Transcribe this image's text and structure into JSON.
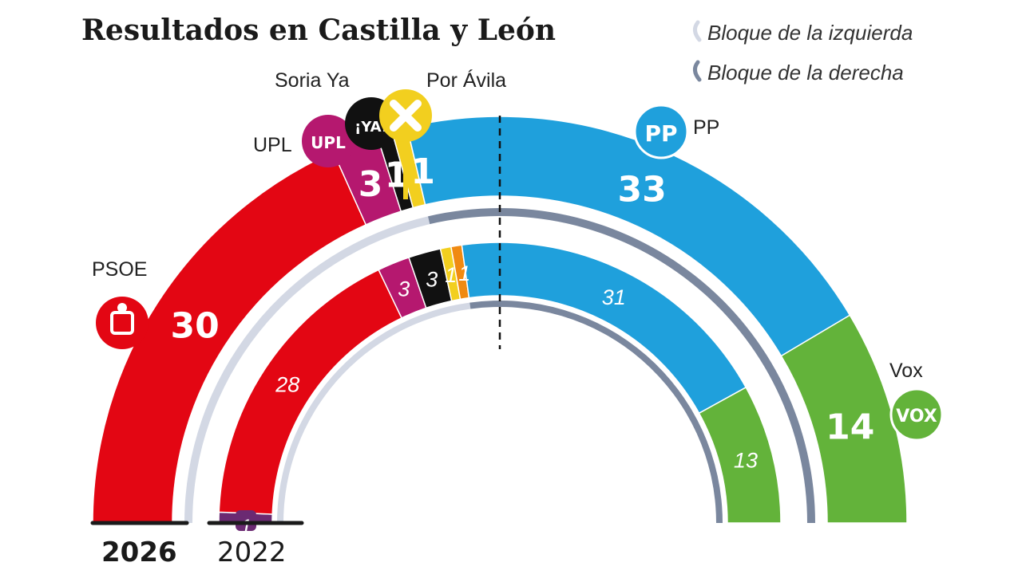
{
  "chart_data": {
    "type": "hemicycle",
    "title": "Resultados en Castilla y León",
    "legend": [
      {
        "label": "Bloque de la izquierda",
        "color": "#d3d8e4"
      },
      {
        "label": "Bloque de la derecha",
        "color": "#7a879e"
      }
    ],
    "majority_line": true,
    "years": [
      {
        "label": "2026",
        "series": [
          {
            "name": "PSOE",
            "value": 30,
            "color": "#e30613",
            "bloc": "izquierda"
          },
          {
            "name": "UPL",
            "value": 3,
            "color": "#b5186f",
            "bloc": "izquierda"
          },
          {
            "name": "Soria Ya",
            "value": 1,
            "color": "#111111",
            "bloc": "izquierda"
          },
          {
            "name": "Por Ávila",
            "value": 1,
            "color": "#f2cf1f",
            "bloc": "izquierda"
          },
          {
            "name": "PP",
            "value": 33,
            "color": "#1fa0dc",
            "bloc": "derecha"
          },
          {
            "name": "Vox",
            "value": 14,
            "color": "#63b33a",
            "bloc": "derecha"
          }
        ]
      },
      {
        "label": "2022",
        "series": [
          {
            "name": "Podemos",
            "value": 1,
            "color": "#6b2a72",
            "bloc": "izquierda"
          },
          {
            "name": "PSOE",
            "value": 28,
            "color": "#e30613",
            "bloc": "izquierda"
          },
          {
            "name": "UPL",
            "value": 3,
            "color": "#b5186f",
            "bloc": "izquierda"
          },
          {
            "name": "Soria Ya",
            "value": 3,
            "color": "#111111",
            "bloc": "izquierda"
          },
          {
            "name": "Por Ávila",
            "value": 1,
            "color": "#f2cf1f",
            "bloc": "izquierda"
          },
          {
            "name": "Cs",
            "value": 1,
            "color": "#f08a12",
            "bloc": "izquierda"
          },
          {
            "name": "PP",
            "value": 31,
            "color": "#1fa0dc",
            "bloc": "derecha"
          },
          {
            "name": "Vox",
            "value": 13,
            "color": "#63b33a",
            "bloc": "derecha"
          }
        ]
      }
    ],
    "party_labels": {
      "psoe": "PSOE",
      "upl": "UPL",
      "soria": "Soria Ya",
      "avila": "Por Ávila",
      "pp": "PP",
      "vox": "Vox"
    },
    "logos": {
      "upl": "UPL",
      "soria": "¡YA!",
      "pp": "PP",
      "vox": "VOX"
    }
  }
}
